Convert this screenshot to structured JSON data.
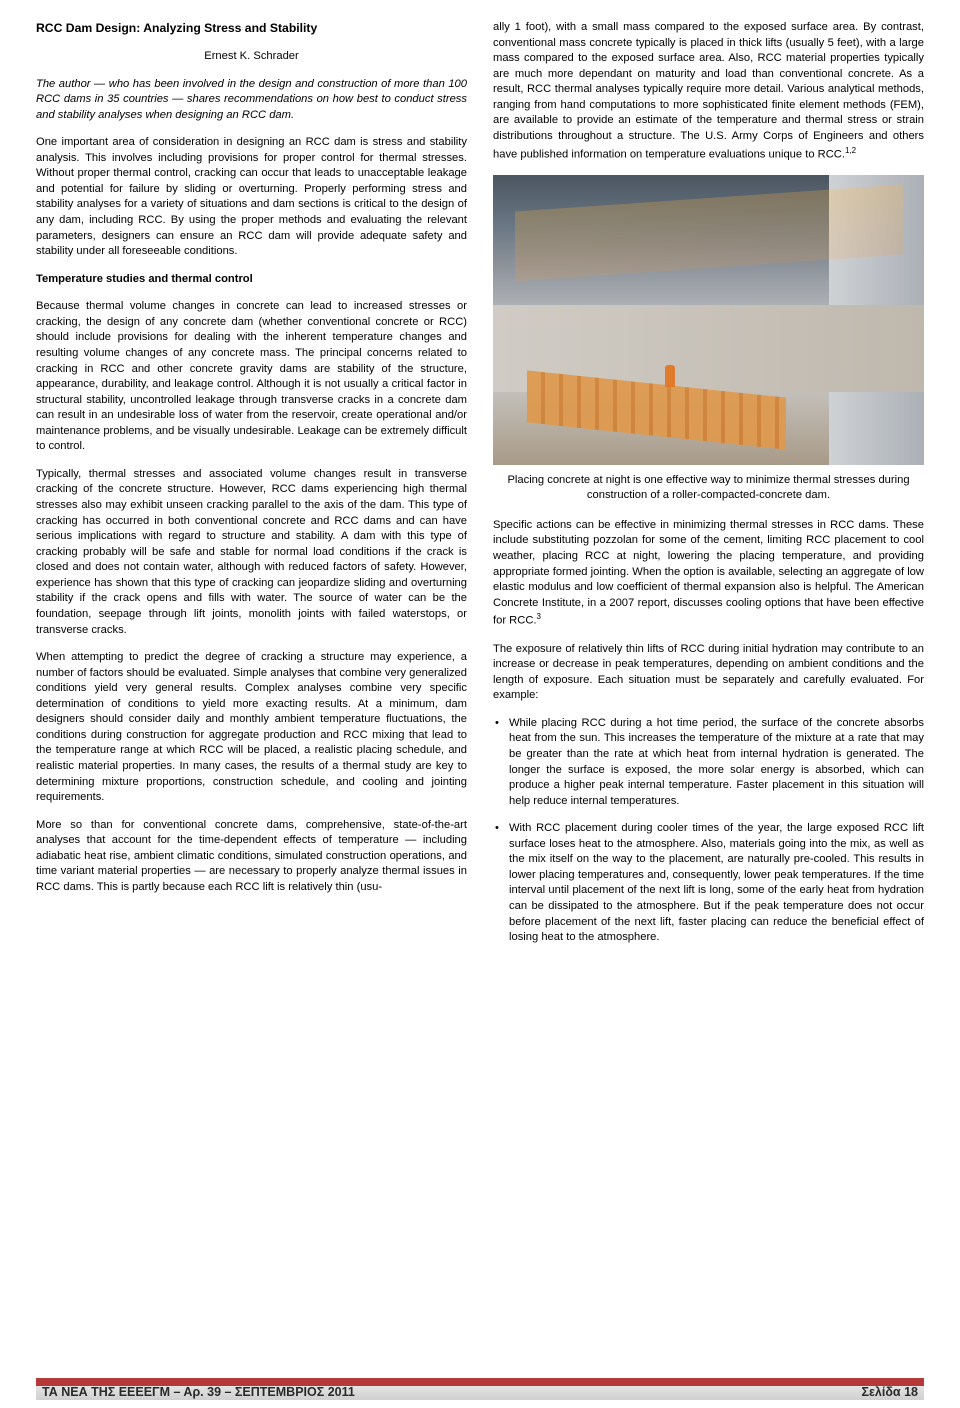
{
  "title": "RCC Dam Design: Analyzing Stress and Stability",
  "author": "Ernest K. Schrader",
  "intro": "The author — who has been involved in the design and construction of more than 100 RCC dams in 35 countries — shares recommendations on how best to conduct stress and stability analyses when designing an RCC dam.",
  "left": {
    "p1": "One important area of consideration in designing an RCC dam is stress and stability analysis. This involves including provisions for proper control for thermal stresses. Without proper thermal control, cracking can occur that leads to unacceptable leakage and potential for failure by sliding or overturning. Properly performing stress and stability analyses for a variety of situations and dam sections is critical to the design of any dam, including RCC. By using the proper methods and evaluating the relevant parameters, designers can ensure an RCC dam will provide adequate safety and stability under all foreseeable conditions.",
    "h1": "Temperature studies and thermal control",
    "p2": "Because thermal volume changes in concrete can lead to increased stresses or cracking, the design of any concrete dam (whether conventional concrete or RCC) should include provisions for dealing with the inherent temperature changes and resulting volume changes of any concrete mass. The principal concerns related to cracking in RCC and other concrete gravity dams are stability of the structure, appearance, durability, and leakage control. Although it is not usually a critical factor in structural stability, uncontrolled leakage through transverse cracks in a concrete dam can result in an undesirable loss of water from the reservoir, create operational and/or maintenance problems, and be visually undesirable. Leakage can be extremely difficult to control.",
    "p3": "Typically, thermal stresses and associated volume changes result in transverse cracking of the concrete structure. However, RCC dams experiencing high thermal stresses also may exhibit unseen cracking parallel to the axis of the dam. This type of cracking has occurred in both conventional concrete and RCC dams and can have serious implications with regard to structure and stability. A dam with this type of cracking probably will be safe and stable for normal load conditions if the crack is closed and does not contain water, although with reduced factors of safety. However, experience has shown that this type of cracking can jeopardize sliding and overturning stability if the crack opens and fills with water. The source of water can be the foundation, seepage through lift joints, monolith joints with failed waterstops, or transverse cracks.",
    "p4": "When attempting to predict the degree of cracking a structure may experience, a number of factors should be evaluated. Simple analyses that combine very generalized conditions yield very general results. Complex analyses combine very specific determination of conditions to yield more exacting results. At a minimum, dam designers should consider daily and monthly ambient temperature fluctuations, the conditions during construction for aggregate production and RCC mixing that lead to the temperature range at which RCC will be placed, a realistic placing schedule, and realistic material properties. In many cases, the results of a thermal study are key to determining mixture proportions, construction schedule, and cooling and jointing requirements.",
    "p5": "More so than for conventional concrete dams, comprehensive, state-of-the-art analyses that account for the time-dependent effects of temperature — including adiabatic heat rise, ambient climatic conditions, simulated construction operations, and time variant material properties — are necessary to properly analyze thermal issues in RCC dams. This is partly because each RCC lift is relatively thin (usu-"
  },
  "right": {
    "p1a": "ally 1 foot), with a small mass compared to the exposed surface area. By contrast, conventional mass concrete typically is placed in thick lifts (usually 5 feet), with a large mass compared to the exposed surface area. Also, RCC material properties typically are much more dependant on maturity and load than conventional concrete. As a result, RCC thermal analyses typically require more detail. Various analytical methods, ranging from hand computations to more sophisticated finite element methods (FEM), are available to provide an estimate of the temperature and thermal stress or strain distributions throughout a structure. The U.S. Army Corps of Engineers and others have published information on temperature evaluations unique to RCC.",
    "p1sup": "1,2",
    "caption": "Placing concrete at night is one effective way to minimize thermal stresses during construction of a roller-compacted-concrete dam.",
    "p2a": "Specific actions can be effective in minimizing thermal stresses in RCC dams. These include substituting pozzolan for some of the cement, limiting RCC placement to cool weather, placing RCC at night, lowering the placing temperature, and providing appropriate formed jointing. When the option is available, selecting an aggregate of low elastic modulus and low coefficient of thermal expansion also is helpful. The American Concrete Institute, in a 2007 report, discusses cooling options that have been effective for RCC.",
    "p2sup": "3",
    "p3": "The exposure of relatively thin lifts of RCC during initial hydration may contribute to an increase or decrease in peak temperatures, depending on ambient conditions and the length of exposure. Each situation must be separately and carefully evaluated. For example:",
    "b1": "While placing RCC during a hot time period, the surface of the concrete absorbs heat from the sun. This increases the temperature of the mixture at a rate that may be greater than the rate at which heat from internal hydration is generated. The longer the surface is exposed, the more solar energy is absorbed, which can produce a higher peak internal temperature. Faster placement in this situation will help reduce internal temperatures.",
    "b2": "With RCC placement during cooler times of the year, the large exposed RCC lift surface loses heat to the atmosphere. Also, materials going into the mix, as well as the mix itself on the way to the placement, are naturally pre-cooled. This results in lower placing temperatures and, consequently, lower peak temperatures. If the time interval until placement of the next lift is long, some of the early heat from hydration can be dissipated to the atmosphere. But if the peak temperature does not occur before placement of the next lift, faster placing can reduce the beneficial effect of losing heat to the atmosphere."
  },
  "footer": {
    "left": "ΤΑ ΝΕΑ ΤΗΣ ΕΕΕΕΓΜ – Αρ. 39 – ΣΕΠΤΕΜΒΡΙΟΣ 2011",
    "right": "Σελίδα 18"
  }
}
